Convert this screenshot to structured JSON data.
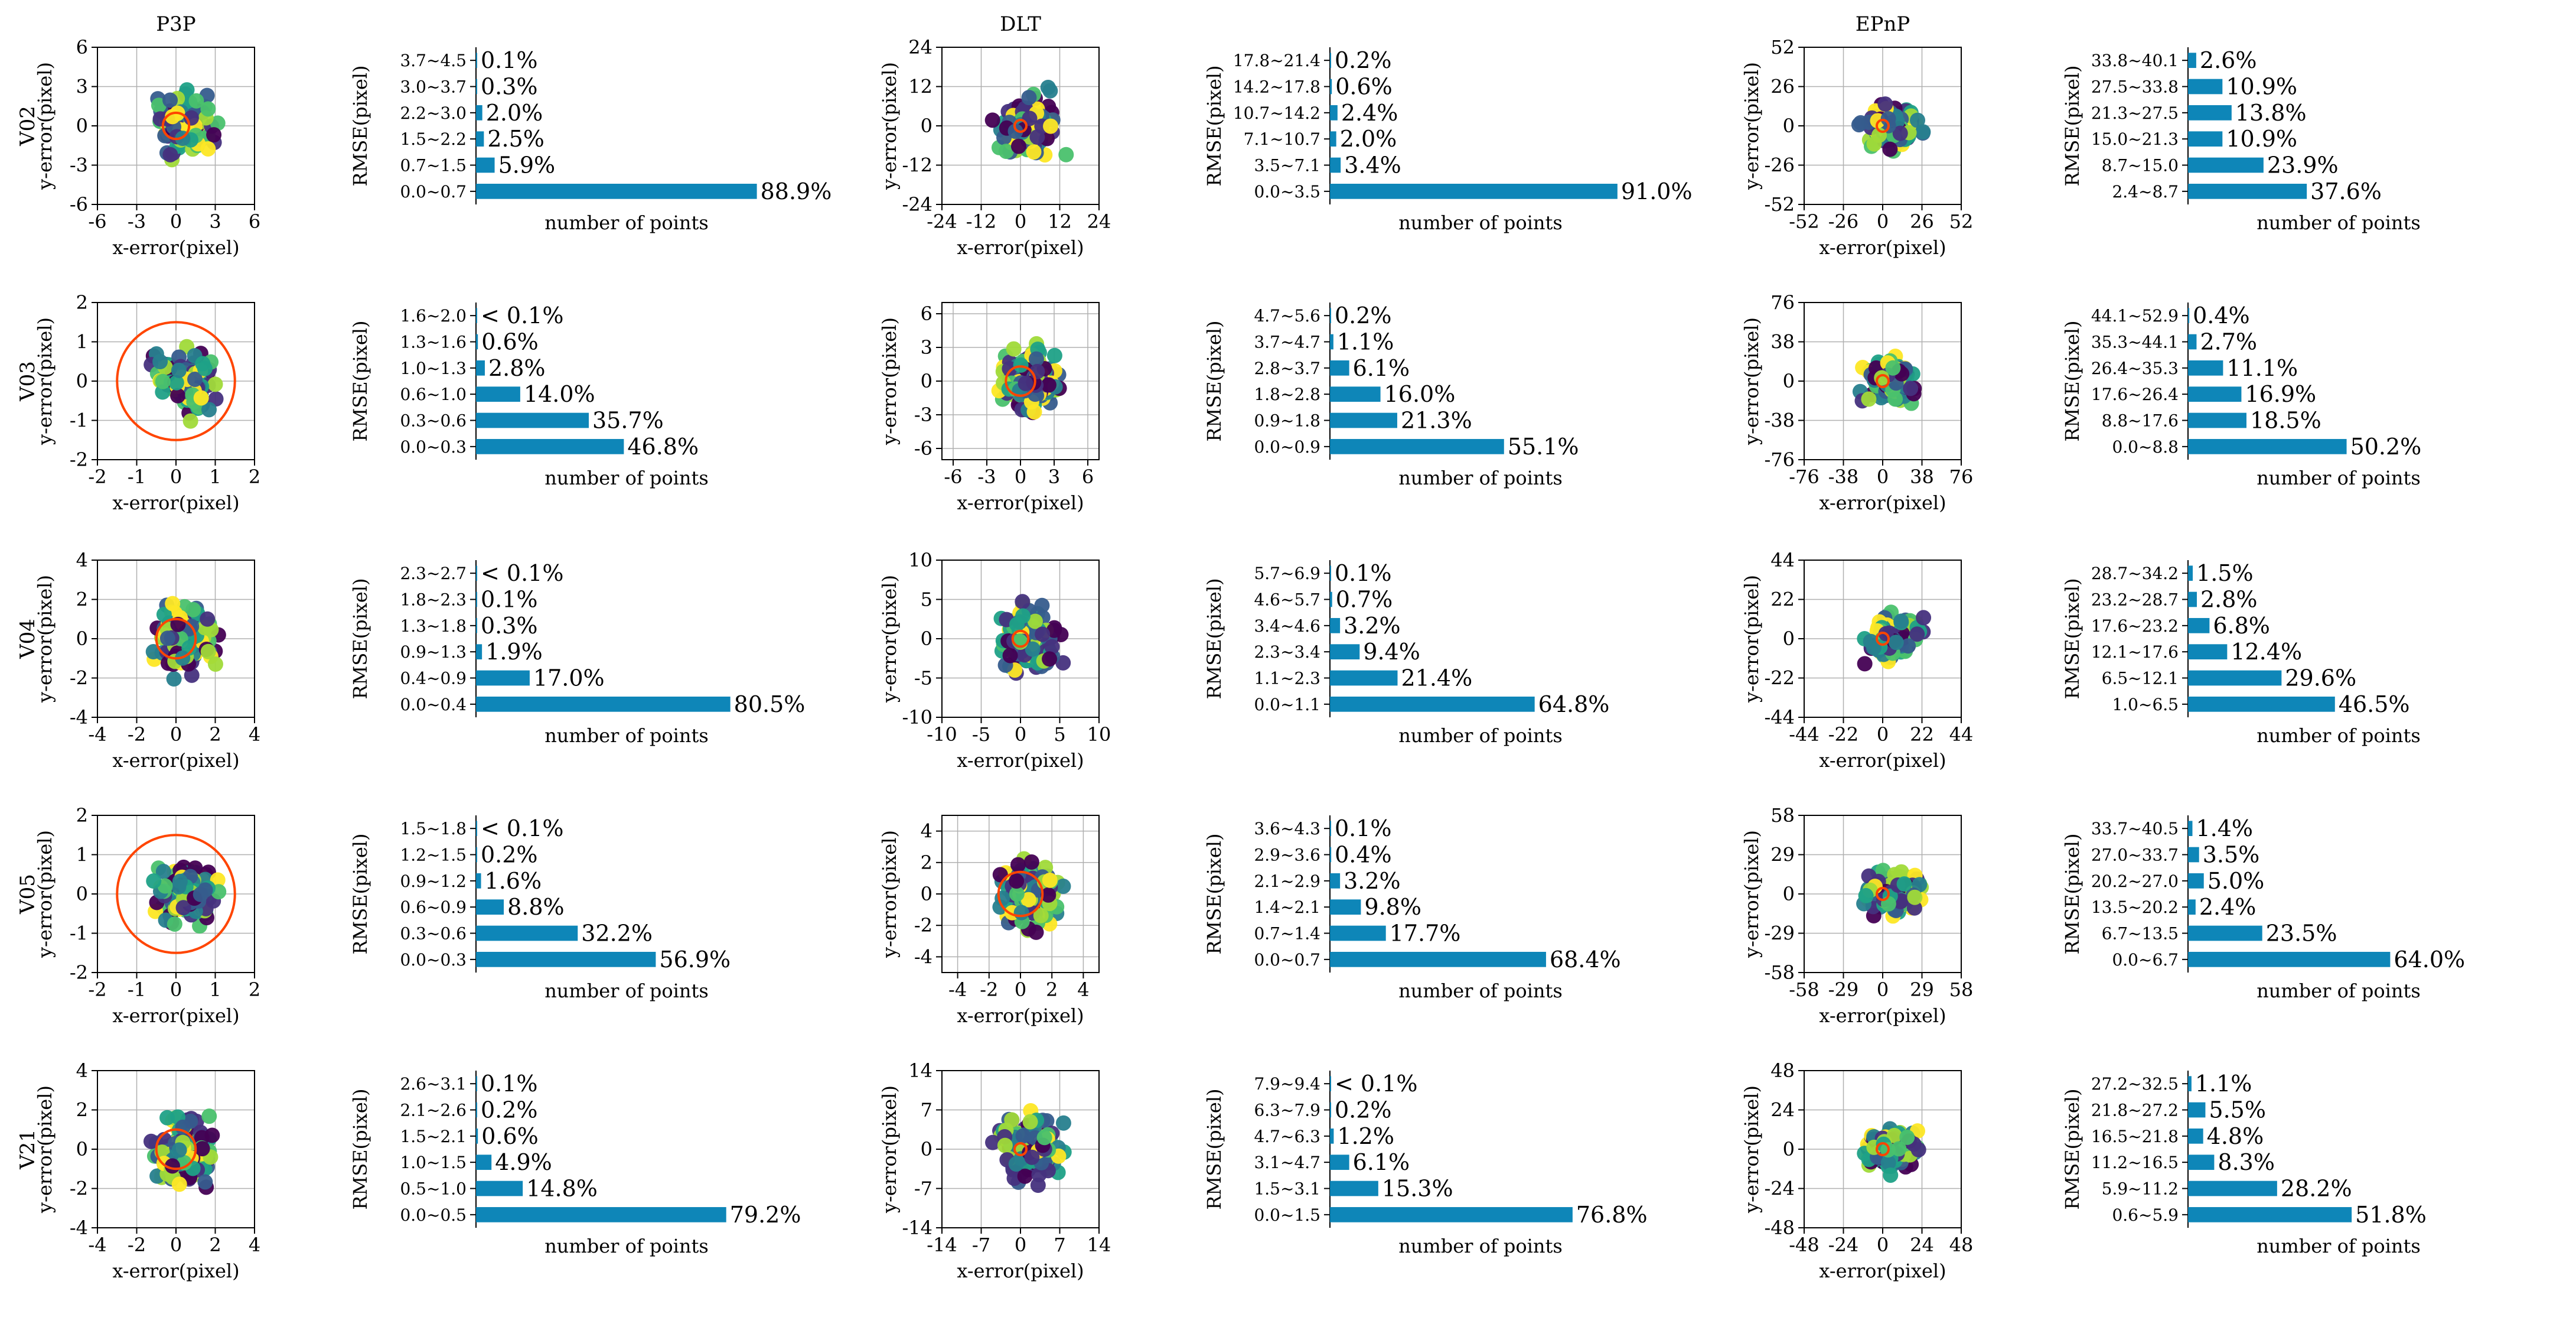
{
  "chart_data": {
    "type": "figure-grid",
    "methods": [
      "P3P",
      "DLT",
      "EPnP"
    ],
    "sequences": [
      "V02",
      "V03",
      "V04",
      "V05",
      "V21"
    ],
    "scatter_xlabel": "x-error(pixel)",
    "scatter_ylabel": "y-error(pixel)",
    "bar_xlabel": "number of points",
    "bar_ylabel": "RMSE(pixel)",
    "rows": [
      {
        "seq": "V02",
        "panels": [
          {
            "method": "P3P",
            "scatter": {
              "type": "scatter",
              "ticks": [
                -6,
                -3,
                0,
                3,
                6
              ],
              "lim": 6,
              "circle_r": 1
            },
            "bars": {
              "type": "bar",
              "categories": [
                "3.7~4.5",
                "3.0~3.7",
                "2.2~3.0",
                "1.5~2.2",
                "0.7~1.5",
                "0.0~0.7"
              ],
              "values": [
                0.1,
                0.3,
                2.0,
                2.5,
                5.9,
                88.9
              ],
              "labels": [
                "0.1%",
                "0.3%",
                "2.0%",
                "2.5%",
                "5.9%",
                "88.9%"
              ]
            }
          },
          {
            "method": "DLT",
            "scatter": {
              "type": "scatter",
              "ticks": [
                -24,
                -12,
                0,
                12,
                24
              ],
              "lim": 24,
              "circle_r": 1.5
            },
            "bars": {
              "type": "bar",
              "categories": [
                "17.8~21.4",
                "14.2~17.8",
                "10.7~14.2",
                "7.1~10.7",
                "3.5~7.1",
                "0.0~3.5"
              ],
              "values": [
                0.2,
                0.6,
                2.4,
                2.0,
                3.4,
                91.0
              ],
              "labels": [
                "0.2%",
                "0.6%",
                "2.4%",
                "2.0%",
                "3.4%",
                "91.0%"
              ]
            }
          },
          {
            "method": "EPnP",
            "scatter": {
              "type": "scatter",
              "ticks": [
                -52,
                -26,
                0,
                26,
                52
              ],
              "lim": 52,
              "circle_r": 3
            },
            "bars": {
              "type": "bar",
              "categories": [
                "33.8~40.1",
                "27.5~33.8",
                "21.3~27.5",
                "15.0~21.3",
                "8.7~15.0",
                "2.4~8.7"
              ],
              "values": [
                2.6,
                10.9,
                13.8,
                10.9,
                23.9,
                37.6
              ],
              "labels": [
                "2.6%",
                "10.9%",
                "13.8%",
                "10.9%",
                "23.9%",
                "37.6%"
              ]
            }
          }
        ]
      },
      {
        "seq": "V03",
        "panels": [
          {
            "method": "P3P",
            "scatter": {
              "type": "scatter",
              "ticks": [
                -2,
                -1,
                0,
                1,
                2
              ],
              "lim": 2,
              "circle_r": 1.5
            },
            "bars": {
              "type": "bar",
              "categories": [
                "1.6~2.0",
                "1.3~1.6",
                "1.0~1.3",
                "0.6~1.0",
                "0.3~0.6",
                "0.0~0.3"
              ],
              "values": [
                0.05,
                0.6,
                2.8,
                14.0,
                35.7,
                46.8
              ],
              "labels": [
                "< 0.1%",
                "0.6%",
                "2.8%",
                "14.0%",
                "35.7%",
                "46.8%"
              ]
            }
          },
          {
            "method": "DLT",
            "scatter": {
              "type": "scatter",
              "ticks": [
                -6,
                -3,
                0,
                3,
                6
              ],
              "lim": 7,
              "circle_r": 1.3
            },
            "bars": {
              "type": "bar",
              "categories": [
                "4.7~5.6",
                "3.7~4.7",
                "2.8~3.7",
                "1.8~2.8",
                "0.9~1.8",
                "0.0~0.9"
              ],
              "values": [
                0.2,
                1.1,
                6.1,
                16.0,
                21.3,
                55.1
              ],
              "labels": [
                "0.2%",
                "1.1%",
                "6.1%",
                "16.0%",
                "21.3%",
                "55.1%"
              ]
            }
          },
          {
            "method": "EPnP",
            "scatter": {
              "type": "scatter",
              "ticks": [
                -76,
                -38,
                0,
                38,
                76
              ],
              "lim": 76,
              "circle_r": 3
            },
            "bars": {
              "type": "bar",
              "categories": [
                "44.1~52.9",
                "35.3~44.1",
                "26.4~35.3",
                "17.6~26.4",
                "8.8~17.6",
                "0.0~8.8"
              ],
              "values": [
                0.4,
                2.7,
                11.1,
                16.9,
                18.5,
                50.2
              ],
              "labels": [
                "0.4%",
                "2.7%",
                "11.1%",
                "16.9%",
                "18.5%",
                "50.2%"
              ]
            }
          }
        ]
      },
      {
        "seq": "V04",
        "panels": [
          {
            "method": "P3P",
            "scatter": {
              "type": "scatter",
              "ticks": [
                -4,
                -2,
                0,
                2,
                4
              ],
              "lim": 4,
              "circle_r": 1
            },
            "bars": {
              "type": "bar",
              "categories": [
                "2.3~2.7",
                "1.8~2.3",
                "1.3~1.8",
                "0.9~1.3",
                "0.4~0.9",
                "0.0~0.4"
              ],
              "values": [
                0.05,
                0.1,
                0.3,
                1.9,
                17.0,
                80.5
              ],
              "labels": [
                "< 0.1%",
                "0.1%",
                "0.3%",
                "1.9%",
                "17.0%",
                "80.5%"
              ]
            }
          },
          {
            "method": "DLT",
            "scatter": {
              "type": "scatter",
              "ticks": [
                -10,
                -5,
                0,
                5,
                10
              ],
              "lim": 10,
              "circle_r": 1
            },
            "bars": {
              "type": "bar",
              "categories": [
                "5.7~6.9",
                "4.6~5.7",
                "3.4~4.6",
                "2.3~3.4",
                "1.1~2.3",
                "0.0~1.1"
              ],
              "values": [
                0.1,
                0.7,
                3.2,
                9.4,
                21.4,
                64.8
              ],
              "labels": [
                "0.1%",
                "0.7%",
                "3.2%",
                "9.4%",
                "21.4%",
                "64.8%"
              ]
            }
          },
          {
            "method": "EPnP",
            "scatter": {
              "type": "scatter",
              "ticks": [
                -44,
                -22,
                0,
                22,
                44
              ],
              "lim": 44,
              "circle_r": 3
            },
            "bars": {
              "type": "bar",
              "categories": [
                "28.7~34.2",
                "23.2~28.7",
                "17.6~23.2",
                "12.1~17.6",
                "6.5~12.1",
                "1.0~6.5"
              ],
              "values": [
                1.5,
                2.8,
                6.8,
                12.4,
                29.6,
                46.5
              ],
              "labels": [
                "1.5%",
                "2.8%",
                "6.8%",
                "12.4%",
                "29.6%",
                "46.5%"
              ]
            }
          }
        ]
      },
      {
        "seq": "V05",
        "panels": [
          {
            "method": "P3P",
            "scatter": {
              "type": "scatter",
              "ticks": [
                -2,
                -1,
                0,
                1,
                2
              ],
              "lim": 2,
              "circle_r": 1.5
            },
            "bars": {
              "type": "bar",
              "categories": [
                "1.5~1.8",
                "1.2~1.5",
                "0.9~1.2",
                "0.6~0.9",
                "0.3~0.6",
                "0.0~0.3"
              ],
              "values": [
                0.05,
                0.2,
                1.6,
                8.8,
                32.2,
                56.9
              ],
              "labels": [
                "< 0.1%",
                "0.2%",
                "1.6%",
                "8.8%",
                "32.2%",
                "56.9%"
              ]
            }
          },
          {
            "method": "DLT",
            "scatter": {
              "type": "scatter",
              "ticks": [
                -4,
                -2,
                0,
                2,
                4
              ],
              "lim": 5,
              "circle_r": 1.4
            },
            "bars": {
              "type": "bar",
              "categories": [
                "3.6~4.3",
                "2.9~3.6",
                "2.1~2.9",
                "1.4~2.1",
                "0.7~1.4",
                "0.0~0.7"
              ],
              "values": [
                0.1,
                0.4,
                3.2,
                9.8,
                17.7,
                68.4
              ],
              "labels": [
                "0.1%",
                "0.4%",
                "3.2%",
                "9.8%",
                "17.7%",
                "68.4%"
              ]
            }
          },
          {
            "method": "EPnP",
            "scatter": {
              "type": "scatter",
              "ticks": [
                -58,
                -29,
                0,
                29,
                58
              ],
              "lim": 58,
              "circle_r": 3
            },
            "bars": {
              "type": "bar",
              "categories": [
                "33.7~40.5",
                "27.0~33.7",
                "20.2~27.0",
                "13.5~20.2",
                "6.7~13.5",
                "0.0~6.7"
              ],
              "values": [
                1.4,
                3.5,
                5.0,
                2.4,
                23.5,
                64.0
              ],
              "labels": [
                "1.4%",
                "3.5%",
                "5.0%",
                "2.4%",
                "23.5%",
                "64.0%"
              ]
            }
          }
        ]
      },
      {
        "seq": "V21",
        "panels": [
          {
            "method": "P3P",
            "scatter": {
              "type": "scatter",
              "ticks": [
                -4,
                -2,
                0,
                2,
                4
              ],
              "lim": 4,
              "circle_r": 1
            },
            "bars": {
              "type": "bar",
              "categories": [
                "2.6~3.1",
                "2.1~2.6",
                "1.5~2.1",
                "1.0~1.5",
                "0.5~1.0",
                "0.0~0.5"
              ],
              "values": [
                0.1,
                0.2,
                0.6,
                4.9,
                14.8,
                79.2
              ],
              "labels": [
                "0.1%",
                "0.2%",
                "0.6%",
                "4.9%",
                "14.8%",
                "79.2%"
              ]
            }
          },
          {
            "method": "DLT",
            "scatter": {
              "type": "scatter",
              "ticks": [
                -14,
                -7,
                0,
                7,
                14
              ],
              "lim": 14,
              "circle_r": 1
            },
            "bars": {
              "type": "bar",
              "categories": [
                "7.9~9.4",
                "6.3~7.9",
                "4.7~6.3",
                "3.1~4.7",
                "1.5~3.1",
                "0.0~1.5"
              ],
              "values": [
                0.05,
                0.2,
                1.2,
                6.1,
                15.3,
                76.8
              ],
              "labels": [
                "< 0.1%",
                "0.2%",
                "1.2%",
                "6.1%",
                "15.3%",
                "76.8%"
              ]
            }
          },
          {
            "method": "EPnP",
            "scatter": {
              "type": "scatter",
              "ticks": [
                -48,
                -24,
                0,
                24,
                48
              ],
              "lim": 48,
              "circle_r": 3
            },
            "bars": {
              "type": "bar",
              "categories": [
                "27.2~32.5",
                "21.8~27.2",
                "16.5~21.8",
                "11.2~16.5",
                "5.9~11.2",
                "0.6~5.9"
              ],
              "values": [
                1.1,
                5.5,
                4.8,
                8.3,
                28.2,
                51.8
              ],
              "labels": [
                "1.1%",
                "5.5%",
                "4.8%",
                "8.3%",
                "28.2%",
                "51.8%"
              ]
            }
          }
        ]
      }
    ]
  }
}
